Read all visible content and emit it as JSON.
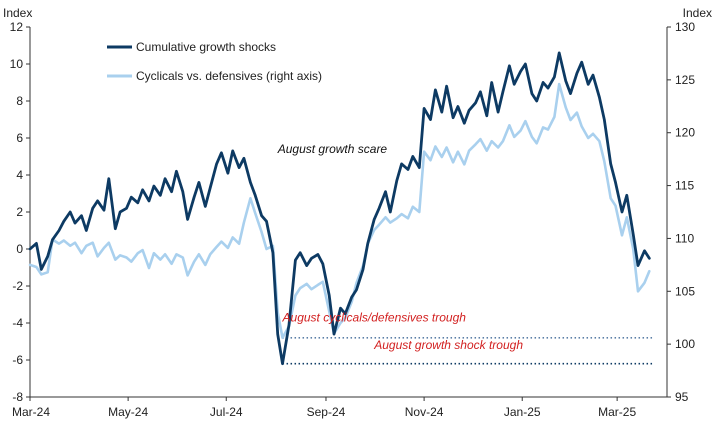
{
  "chart_data": {
    "type": "line",
    "title": "",
    "ylabel_left": "Index",
    "ylabel_right": "Index",
    "y_left_lim": [
      -8,
      12
    ],
    "y_left_ticks": [
      "12",
      "10",
      "8",
      "6",
      "4",
      "2",
      "0",
      "-2",
      "-4",
      "-6",
      "-8"
    ],
    "y_right_lim": [
      95,
      130
    ],
    "y_right_ticks": [
      "130",
      "125",
      "120",
      "115",
      "110",
      "105",
      "100",
      "95"
    ],
    "x_range": [
      "2024-03-01",
      "2025-04-01"
    ],
    "x_ticks": [
      {
        "label": "Mar-24",
        "date": "2024-03-01"
      },
      {
        "label": "May-24",
        "date": "2024-05-01"
      },
      {
        "label": "Jul-24",
        "date": "2024-07-01"
      },
      {
        "label": "Sep-24",
        "date": "2024-09-01"
      },
      {
        "label": "Nov-24",
        "date": "2024-11-01"
      },
      {
        "label": "Jan-25",
        "date": "2025-01-01"
      },
      {
        "label": "Mar-25",
        "date": "2025-03-01"
      }
    ],
    "grid": false,
    "legend_position": "top-left",
    "series": [
      {
        "name": "Cumulative growth shocks",
        "axis": "left",
        "color": "#0d3a63",
        "points": [
          [
            "2024-03-01",
            0.0
          ],
          [
            "2024-03-05",
            0.3
          ],
          [
            "2024-03-08",
            -1.1
          ],
          [
            "2024-03-12",
            -0.4
          ],
          [
            "2024-03-15",
            0.5
          ],
          [
            "2024-03-19",
            1.0
          ],
          [
            "2024-03-22",
            1.5
          ],
          [
            "2024-03-26",
            2.0
          ],
          [
            "2024-03-29",
            1.4
          ],
          [
            "2024-04-02",
            1.8
          ],
          [
            "2024-04-05",
            1.0
          ],
          [
            "2024-04-09",
            2.2
          ],
          [
            "2024-04-12",
            2.6
          ],
          [
            "2024-04-16",
            2.1
          ],
          [
            "2024-04-19",
            3.8
          ],
          [
            "2024-04-23",
            1.1
          ],
          [
            "2024-04-26",
            2.0
          ],
          [
            "2024-04-30",
            2.2
          ],
          [
            "2024-05-03",
            2.8
          ],
          [
            "2024-05-07",
            2.5
          ],
          [
            "2024-05-10",
            3.2
          ],
          [
            "2024-05-14",
            2.6
          ],
          [
            "2024-05-17",
            3.4
          ],
          [
            "2024-05-21",
            2.9
          ],
          [
            "2024-05-24",
            3.8
          ],
          [
            "2024-05-28",
            3.1
          ],
          [
            "2024-05-31",
            4.2
          ],
          [
            "2024-06-04",
            3.1
          ],
          [
            "2024-06-07",
            1.6
          ],
          [
            "2024-06-11",
            2.8
          ],
          [
            "2024-06-14",
            3.6
          ],
          [
            "2024-06-18",
            2.3
          ],
          [
            "2024-06-21",
            3.3
          ],
          [
            "2024-06-25",
            4.6
          ],
          [
            "2024-06-28",
            5.2
          ],
          [
            "2024-07-02",
            4.1
          ],
          [
            "2024-07-05",
            5.3
          ],
          [
            "2024-07-09",
            4.4
          ],
          [
            "2024-07-12",
            4.9
          ],
          [
            "2024-07-16",
            3.6
          ],
          [
            "2024-07-19",
            2.9
          ],
          [
            "2024-07-23",
            1.8
          ],
          [
            "2024-07-26",
            1.5
          ],
          [
            "2024-07-30",
            -0.2
          ],
          [
            "2024-08-02",
            -4.6
          ],
          [
            "2024-08-05",
            -6.2
          ],
          [
            "2024-08-09",
            -4.1
          ],
          [
            "2024-08-13",
            -0.6
          ],
          [
            "2024-08-16",
            -0.2
          ],
          [
            "2024-08-20",
            -0.9
          ],
          [
            "2024-08-23",
            -0.5
          ],
          [
            "2024-08-27",
            -0.3
          ],
          [
            "2024-08-30",
            -0.8
          ],
          [
            "2024-09-03",
            -2.5
          ],
          [
            "2024-09-06",
            -4.6
          ],
          [
            "2024-09-10",
            -3.2
          ],
          [
            "2024-09-13",
            -3.5
          ],
          [
            "2024-09-17",
            -2.6
          ],
          [
            "2024-09-20",
            -2.2
          ],
          [
            "2024-09-24",
            -1.1
          ],
          [
            "2024-09-27",
            0.3
          ],
          [
            "2024-10-01",
            1.6
          ],
          [
            "2024-10-04",
            2.2
          ],
          [
            "2024-10-08",
            3.1
          ],
          [
            "2024-10-11",
            2.0
          ],
          [
            "2024-10-15",
            3.7
          ],
          [
            "2024-10-18",
            4.6
          ],
          [
            "2024-10-22",
            4.3
          ],
          [
            "2024-10-25",
            5.0
          ],
          [
            "2024-10-29",
            4.4
          ],
          [
            "2024-11-01",
            7.6
          ],
          [
            "2024-11-05",
            7.0
          ],
          [
            "2024-11-08",
            8.6
          ],
          [
            "2024-11-12",
            7.4
          ],
          [
            "2024-11-15",
            8.8
          ],
          [
            "2024-11-19",
            7.1
          ],
          [
            "2024-11-22",
            7.7
          ],
          [
            "2024-11-26",
            6.8
          ],
          [
            "2024-11-29",
            7.5
          ],
          [
            "2024-12-03",
            7.9
          ],
          [
            "2024-12-06",
            8.5
          ],
          [
            "2024-12-10",
            7.2
          ],
          [
            "2024-12-13",
            9.0
          ],
          [
            "2024-12-17",
            7.4
          ],
          [
            "2024-12-20",
            8.5
          ],
          [
            "2024-12-24",
            9.9
          ],
          [
            "2024-12-27",
            8.9
          ],
          [
            "2024-12-31",
            9.6
          ],
          [
            "2025-01-03",
            10.0
          ],
          [
            "2025-01-07",
            8.4
          ],
          [
            "2025-01-10",
            8.0
          ],
          [
            "2025-01-14",
            9.0
          ],
          [
            "2025-01-17",
            8.7
          ],
          [
            "2025-01-21",
            9.3
          ],
          [
            "2025-01-24",
            10.6
          ],
          [
            "2025-01-28",
            9.1
          ],
          [
            "2025-01-31",
            8.4
          ],
          [
            "2025-02-04",
            9.5
          ],
          [
            "2025-02-07",
            10.1
          ],
          [
            "2025-02-11",
            8.9
          ],
          [
            "2025-02-14",
            9.4
          ],
          [
            "2025-02-18",
            8.2
          ],
          [
            "2025-02-21",
            7.0
          ],
          [
            "2025-02-25",
            4.6
          ],
          [
            "2025-02-28",
            3.6
          ],
          [
            "2025-03-04",
            2.0
          ],
          [
            "2025-03-07",
            2.9
          ],
          [
            "2025-03-11",
            0.8
          ],
          [
            "2025-03-14",
            -0.9
          ],
          [
            "2025-03-18",
            -0.1
          ],
          [
            "2025-03-21",
            -0.5
          ]
        ]
      },
      {
        "name": "Cyclicals vs. defensives (right axis)",
        "axis": "right",
        "color": "#a9d0ee",
        "points": [
          [
            "2024-03-01",
            107.5
          ],
          [
            "2024-03-05",
            107.3
          ],
          [
            "2024-03-08",
            106.6
          ],
          [
            "2024-03-12",
            106.8
          ],
          [
            "2024-03-15",
            109.9
          ],
          [
            "2024-03-19",
            109.5
          ],
          [
            "2024-03-22",
            109.8
          ],
          [
            "2024-03-26",
            109.3
          ],
          [
            "2024-03-29",
            109.6
          ],
          [
            "2024-04-02",
            108.6
          ],
          [
            "2024-04-05",
            109.3
          ],
          [
            "2024-04-09",
            109.6
          ],
          [
            "2024-04-12",
            108.3
          ],
          [
            "2024-04-16",
            109.1
          ],
          [
            "2024-04-19",
            109.6
          ],
          [
            "2024-04-23",
            108.0
          ],
          [
            "2024-04-26",
            108.4
          ],
          [
            "2024-04-30",
            108.2
          ],
          [
            "2024-05-03",
            107.8
          ],
          [
            "2024-05-07",
            108.6
          ],
          [
            "2024-05-10",
            108.9
          ],
          [
            "2024-05-14",
            107.2
          ],
          [
            "2024-05-17",
            108.6
          ],
          [
            "2024-05-21",
            108.0
          ],
          [
            "2024-05-24",
            108.5
          ],
          [
            "2024-05-28",
            107.6
          ],
          [
            "2024-05-31",
            108.5
          ],
          [
            "2024-06-04",
            108.2
          ],
          [
            "2024-06-07",
            106.5
          ],
          [
            "2024-06-11",
            107.8
          ],
          [
            "2024-06-14",
            108.5
          ],
          [
            "2024-06-18",
            107.5
          ],
          [
            "2024-06-21",
            108.5
          ],
          [
            "2024-06-25",
            109.2
          ],
          [
            "2024-06-28",
            109.7
          ],
          [
            "2024-07-02",
            109.1
          ],
          [
            "2024-07-05",
            110.1
          ],
          [
            "2024-07-09",
            109.5
          ],
          [
            "2024-07-12",
            111.5
          ],
          [
            "2024-07-16",
            113.8
          ],
          [
            "2024-07-19",
            112.4
          ],
          [
            "2024-07-23",
            110.6
          ],
          [
            "2024-07-26",
            109.0
          ],
          [
            "2024-07-30",
            109.3
          ],
          [
            "2024-08-02",
            103.0
          ],
          [
            "2024-08-05",
            100.6
          ],
          [
            "2024-08-09",
            101.7
          ],
          [
            "2024-08-13",
            104.6
          ],
          [
            "2024-08-16",
            105.3
          ],
          [
            "2024-08-20",
            105.7
          ],
          [
            "2024-08-23",
            105.2
          ],
          [
            "2024-08-27",
            105.6
          ],
          [
            "2024-08-30",
            105.9
          ],
          [
            "2024-09-03",
            103.1
          ],
          [
            "2024-09-06",
            101.0
          ],
          [
            "2024-09-10",
            102.0
          ],
          [
            "2024-09-13",
            102.5
          ],
          [
            "2024-09-17",
            104.0
          ],
          [
            "2024-09-20",
            105.8
          ],
          [
            "2024-09-24",
            107.4
          ],
          [
            "2024-09-27",
            109.5
          ],
          [
            "2024-10-01",
            110.8
          ],
          [
            "2024-10-04",
            111.3
          ],
          [
            "2024-10-08",
            112.0
          ],
          [
            "2024-10-11",
            111.5
          ],
          [
            "2024-10-15",
            111.9
          ],
          [
            "2024-10-18",
            112.3
          ],
          [
            "2024-10-22",
            111.9
          ],
          [
            "2024-10-25",
            113.0
          ],
          [
            "2024-10-29",
            112.5
          ],
          [
            "2024-11-01",
            118.2
          ],
          [
            "2024-11-05",
            117.4
          ],
          [
            "2024-11-08",
            118.7
          ],
          [
            "2024-11-12",
            117.7
          ],
          [
            "2024-11-15",
            118.6
          ],
          [
            "2024-11-19",
            117.2
          ],
          [
            "2024-11-22",
            118.2
          ],
          [
            "2024-11-26",
            117.0
          ],
          [
            "2024-11-29",
            118.3
          ],
          [
            "2024-12-03",
            118.9
          ],
          [
            "2024-12-06",
            119.4
          ],
          [
            "2024-12-10",
            118.3
          ],
          [
            "2024-12-13",
            119.2
          ],
          [
            "2024-12-17",
            118.6
          ],
          [
            "2024-12-20",
            119.2
          ],
          [
            "2024-12-24",
            120.7
          ],
          [
            "2024-12-27",
            119.6
          ],
          [
            "2024-12-31",
            120.2
          ],
          [
            "2025-01-03",
            121.1
          ],
          [
            "2025-01-07",
            119.6
          ],
          [
            "2025-01-10",
            119.0
          ],
          [
            "2025-01-14",
            120.5
          ],
          [
            "2025-01-17",
            120.3
          ],
          [
            "2025-01-21",
            121.5
          ],
          [
            "2025-01-24",
            124.6
          ],
          [
            "2025-01-28",
            122.4
          ],
          [
            "2025-01-31",
            121.2
          ],
          [
            "2025-02-04",
            121.9
          ],
          [
            "2025-02-07",
            120.6
          ],
          [
            "2025-02-11",
            119.5
          ],
          [
            "2025-02-14",
            119.9
          ],
          [
            "2025-02-18",
            119.2
          ],
          [
            "2025-02-21",
            117.3
          ],
          [
            "2025-02-25",
            113.8
          ],
          [
            "2025-02-28",
            113.1
          ],
          [
            "2025-03-04",
            110.3
          ],
          [
            "2025-03-07",
            112.0
          ],
          [
            "2025-03-11",
            109.0
          ],
          [
            "2025-03-14",
            105.0
          ],
          [
            "2025-03-18",
            105.8
          ],
          [
            "2025-03-21",
            106.9
          ]
        ]
      }
    ],
    "annotations": [
      {
        "id": "growth-scare",
        "text": "August growth scare",
        "color": "#111111",
        "date": "2024-09-05",
        "axis": "left",
        "y": 5.4
      },
      {
        "id": "cyc-def-trough",
        "text": "August cyclicals/defensives trough",
        "color": "#d21f1f",
        "date": "2024-10-01",
        "axis": "left",
        "y": -3.7
      }
    ],
    "reference_lines": [
      {
        "id": "cyc-def-trough-line",
        "axis": "right",
        "value": 100.6,
        "from": "2024-08-05",
        "to": "2025-03-23",
        "color": "#5b7fa6",
        "style": "dotted"
      },
      {
        "id": "growth-shock-trough-line",
        "axis": "left",
        "value": -6.2,
        "from": "2024-08-05",
        "to": "2025-03-23",
        "color": "#0d3a63",
        "style": "dotted",
        "label": "August growth shock trough",
        "label_color": "#d21f1f",
        "label_date": "2024-10-01",
        "label_y": -5.2
      }
    ]
  }
}
